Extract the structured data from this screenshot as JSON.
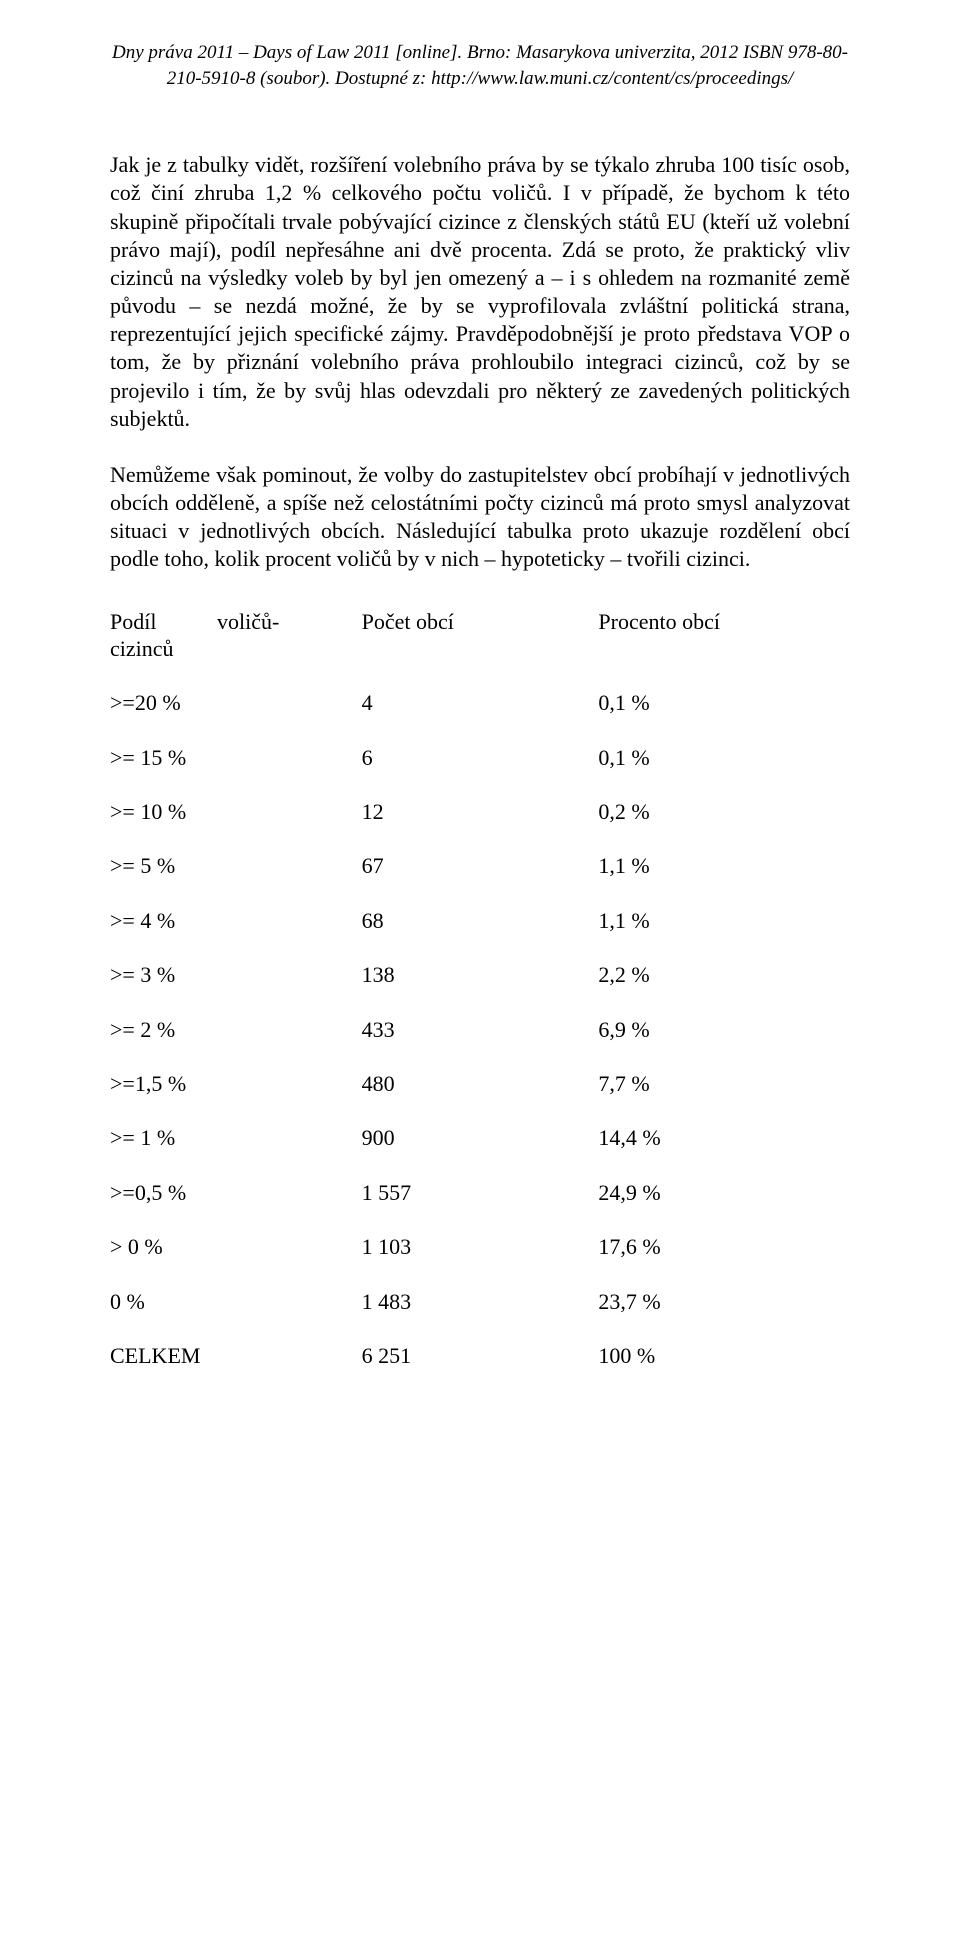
{
  "header": {
    "line1": "Dny práva 2011 – Days of Law 2011 [online]. Brno: Masarykova univerzita, 2012 ISBN 978-80-",
    "line2": "210-5910-8 (soubor). Dostupné z: http://www.law.muni.cz/content/cs/proceedings/"
  },
  "paragraphs": {
    "p1": "Jak je z tabulky vidět, rozšíření volebního práva by se týkalo zhruba 100 tisíc osob, což činí zhruba 1,2 % celkového počtu voličů. I v případě, že bychom k této skupině připočítali trvale pobývající cizince z členských států EU (kteří už volební právo mají), podíl nepřesáhne ani dvě procenta. Zdá se proto, že praktický vliv cizinců na výsledky voleb by byl jen omezený a – i s ohledem na rozmanité země původu – se nezdá možné, že by se vyprofilovala zvláštní politická strana, reprezentující jejich specifické zájmy. Pravděpodobnější je proto představa VOP o tom, že by přiznání volebního práva prohloubilo integraci cizinců, což by se projevilo i tím, že by svůj hlas odevzdali pro některý ze zavedených politických subjektů.",
    "p2": "Nemůžeme však pominout, že volby do zastupitelstev obcí probíhají v jednotlivých obcích odděleně, a spíše než celostátními počty cizinců má proto smysl analyzovat situaci v jednotlivých obcích. Následující tabulka proto ukazuje rozdělení obcí podle toho, kolik procent voličů by v nich – hypoteticky – tvořili cizinci."
  },
  "table": {
    "headers": {
      "col1a": "Podíl",
      "col1b": "voličů-",
      "col1c": "cizinců",
      "col2": "Počet obcí",
      "col3": "Procento obcí"
    },
    "rows": [
      {
        "c1": ">=20 %",
        "c2": "4",
        "c3": "0,1 %"
      },
      {
        "c1": ">= 15 %",
        "c2": "6",
        "c3": "0,1 %"
      },
      {
        "c1": ">= 10 %",
        "c2": "12",
        "c3": "0,2 %"
      },
      {
        "c1": ">= 5 %",
        "c2": "67",
        "c3": "1,1 %"
      },
      {
        "c1": ">= 4 %",
        "c2": "68",
        "c3": "1,1 %"
      },
      {
        "c1": ">= 3 %",
        "c2": "138",
        "c3": "2,2 %"
      },
      {
        "c1": ">= 2 %",
        "c2": "433",
        "c3": "6,9 %"
      },
      {
        "c1": ">=1,5 %",
        "c2": "480",
        "c3": "7,7 %"
      },
      {
        "c1": ">= 1 %",
        "c2": "900",
        "c3": "14,4 %"
      },
      {
        "c1": ">=0,5 %",
        "c2": "1 557",
        "c3": "24,9 %"
      },
      {
        "c1": "> 0 %",
        "c2": "1 103",
        "c3": "17,6 %"
      },
      {
        "c1": "0 %",
        "c2": "1 483",
        "c3": "23,7 %"
      },
      {
        "c1": "CELKEM",
        "c2": "6 251",
        "c3": "100 %"
      }
    ]
  }
}
